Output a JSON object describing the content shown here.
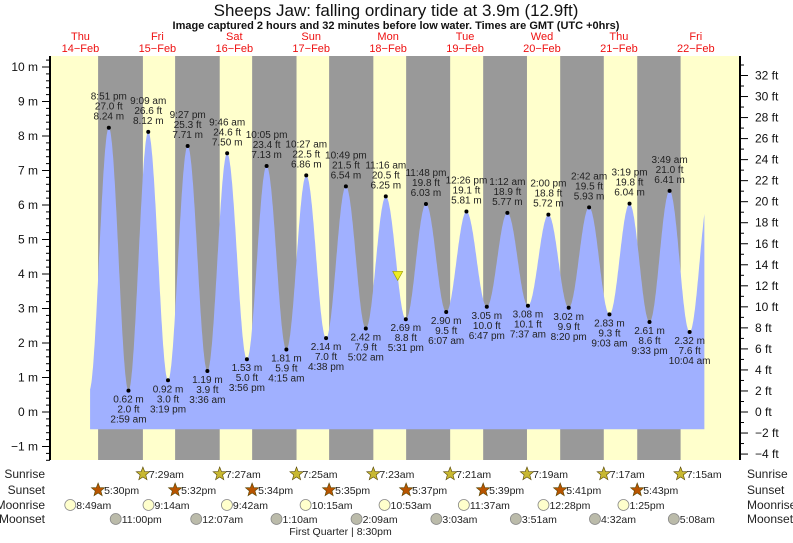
{
  "header": {
    "title": "Sheeps Jaw: falling  ordinary tide at 3.9m (12.9ft)",
    "subtitle": "Image captured 2 hours and 32 minutes before low water. Times are GMT (UTC +0hrs)"
  },
  "chart_data": {
    "type": "area",
    "title": "Sheeps Jaw: falling  ordinary tide at 3.9m (12.9ft)",
    "days": [
      {
        "dow": "Thu",
        "date": "14−Feb"
      },
      {
        "dow": "Fri",
        "date": "15−Feb"
      },
      {
        "dow": "Sat",
        "date": "16−Feb"
      },
      {
        "dow": "Sun",
        "date": "17−Feb"
      },
      {
        "dow": "Mon",
        "date": "18−Feb"
      },
      {
        "dow": "Tue",
        "date": "19−Feb"
      },
      {
        "dow": "Wed",
        "date": "20−Feb"
      },
      {
        "dow": "Thu",
        "date": "21−Feb"
      },
      {
        "dow": "Fri",
        "date": "22−Feb"
      }
    ],
    "y_left": {
      "unit": "m",
      "range": [
        -1.4,
        10.3
      ],
      "ticks": [
        -1,
        0,
        1,
        2,
        3,
        4,
        5,
        6,
        7,
        8,
        9,
        10
      ]
    },
    "y_right": {
      "unit": "ft",
      "ticks": [
        -4,
        -2,
        0,
        2,
        4,
        6,
        8,
        10,
        12,
        14,
        16,
        18,
        20,
        22,
        24,
        26,
        28,
        30,
        32
      ]
    },
    "x_range": [
      {
        "day": 0,
        "time": "3:00 pm"
      },
      {
        "day": 8,
        "time": "2:40 pm"
      }
    ],
    "fill_base_m": -0.5,
    "current": {
      "height_m": 3.9,
      "height_ft": 12.9,
      "state": "falling"
    },
    "extremes": [
      {
        "type": "high",
        "day": 0,
        "time": "8:51 pm",
        "ft": "27.0 ft",
        "m": 8.24
      },
      {
        "type": "low",
        "day": 1,
        "time": "2:59 am",
        "ft": "2.0 ft",
        "m": 0.62
      },
      {
        "type": "high",
        "day": 1,
        "time": "9:09 am",
        "ft": "26.6 ft",
        "m": 8.12
      },
      {
        "type": "low",
        "day": 1,
        "time": "3:19 pm",
        "ft": "3.0 ft",
        "m": 0.92
      },
      {
        "type": "high",
        "day": 1,
        "time": "9:27 pm",
        "ft": "25.3 ft",
        "m": 7.71
      },
      {
        "type": "low",
        "day": 2,
        "time": "3:36 am",
        "ft": "3.9 ft",
        "m": 1.19
      },
      {
        "type": "high",
        "day": 2,
        "time": "9:46 am",
        "ft": "24.6 ft",
        "m": 7.5
      },
      {
        "type": "low",
        "day": 2,
        "time": "3:56 pm",
        "ft": "5.0 ft",
        "m": 1.53
      },
      {
        "type": "high",
        "day": 2,
        "time": "10:05 pm",
        "ft": "23.4 ft",
        "m": 7.13
      },
      {
        "type": "low",
        "day": 3,
        "time": "4:15 am",
        "ft": "5.9 ft",
        "m": 1.81
      },
      {
        "type": "high",
        "day": 3,
        "time": "10:27 am",
        "ft": "22.5 ft",
        "m": 6.86
      },
      {
        "type": "low",
        "day": 3,
        "time": "4:38 pm",
        "ft": "7.0 ft",
        "m": 2.14
      },
      {
        "type": "high",
        "day": 3,
        "time": "10:49 pm",
        "ft": "21.5 ft",
        "m": 6.54
      },
      {
        "type": "low",
        "day": 4,
        "time": "5:02 am",
        "ft": "7.9 ft",
        "m": 2.42
      },
      {
        "type": "high",
        "day": 4,
        "time": "11:16 am",
        "ft": "20.5 ft",
        "m": 6.25
      },
      {
        "type": "low",
        "day": 4,
        "time": "5:31 pm",
        "ft": "8.8 ft",
        "m": 2.69
      },
      {
        "type": "high",
        "day": 4,
        "time": "11:48 pm",
        "ft": "19.8 ft",
        "m": 6.03
      },
      {
        "type": "low",
        "day": 5,
        "time": "6:07 am",
        "ft": "9.5 ft",
        "m": 2.9
      },
      {
        "type": "high",
        "day": 5,
        "time": "12:26 pm",
        "ft": "19.1 ft",
        "m": 5.81
      },
      {
        "type": "low",
        "day": 5,
        "time": "6:47 pm",
        "ft": "10.0 ft",
        "m": 3.05
      },
      {
        "type": "high",
        "day": 6,
        "time": "1:12 am",
        "ft": "18.9 ft",
        "m": 5.77
      },
      {
        "type": "low",
        "day": 6,
        "time": "7:37 am",
        "ft": "10.1 ft",
        "m": 3.08
      },
      {
        "type": "high",
        "day": 6,
        "time": "2:00 pm",
        "ft": "18.8 ft",
        "m": 5.72
      },
      {
        "type": "low",
        "day": 6,
        "time": "8:20 pm",
        "ft": "9.9 ft",
        "m": 3.02
      },
      {
        "type": "high",
        "day": 7,
        "time": "2:42 am",
        "ft": "19.5 ft",
        "m": 5.93
      },
      {
        "type": "low",
        "day": 7,
        "time": "9:03 am",
        "ft": "9.3 ft",
        "m": 2.83
      },
      {
        "type": "high",
        "day": 7,
        "time": "3:19 pm",
        "ft": "19.8 ft",
        "m": 6.04
      },
      {
        "type": "low",
        "day": 7,
        "time": "9:33 pm",
        "ft": "8.6 ft",
        "m": 2.61
      },
      {
        "type": "high",
        "day": 8,
        "time": "3:49 am",
        "ft": "21.0 ft",
        "m": 6.41
      },
      {
        "type": "low",
        "day": 8,
        "time": "10:04 am",
        "ft": "7.6 ft",
        "m": 2.32
      }
    ],
    "colors": {
      "day": "#ffffcc",
      "night": "#999999",
      "water": "#a0b0ff",
      "day_label": "#ee1111",
      "sunrise": "#c8b832",
      "sunset": "#b85400",
      "moonrise": "#ffffcc",
      "moonset": "#bbbbaa",
      "marker": "#eeee22"
    }
  },
  "almanac": {
    "labels": {
      "sunrise": "Sunrise",
      "sunset": "Sunset",
      "moonrise": "Moonrise",
      "moonset": "Moonset"
    },
    "sunrise": [
      {
        "day": 1,
        "time": "7:29am"
      },
      {
        "day": 2,
        "time": "7:27am"
      },
      {
        "day": 3,
        "time": "7:25am"
      },
      {
        "day": 4,
        "time": "7:23am"
      },
      {
        "day": 5,
        "time": "7:21am"
      },
      {
        "day": 6,
        "time": "7:19am"
      },
      {
        "day": 7,
        "time": "7:17am"
      },
      {
        "day": 8,
        "time": "7:15am"
      }
    ],
    "sunset": [
      {
        "day": 0,
        "time": "5:30pm"
      },
      {
        "day": 1,
        "time": "5:32pm"
      },
      {
        "day": 2,
        "time": "5:34pm"
      },
      {
        "day": 3,
        "time": "5:35pm"
      },
      {
        "day": 4,
        "time": "5:37pm"
      },
      {
        "day": 5,
        "time": "5:39pm"
      },
      {
        "day": 6,
        "time": "5:41pm"
      },
      {
        "day": 7,
        "time": "5:43pm"
      }
    ],
    "moonrise": [
      {
        "day": 0,
        "time": "8:49am"
      },
      {
        "day": 1,
        "time": "9:14am"
      },
      {
        "day": 2,
        "time": "9:42am"
      },
      {
        "day": 3,
        "time": "10:15am"
      },
      {
        "day": 4,
        "time": "10:53am"
      },
      {
        "day": 5,
        "time": "11:37am"
      },
      {
        "day": 6,
        "time": "12:28pm"
      },
      {
        "day": 7,
        "time": "1:25pm"
      }
    ],
    "moonset": [
      {
        "day": 0,
        "time": "11:00pm"
      },
      {
        "day": 2,
        "time": "12:07am"
      },
      {
        "day": 3,
        "time": "1:10am"
      },
      {
        "day": 4,
        "time": "2:09am"
      },
      {
        "day": 5,
        "time": "3:03am"
      },
      {
        "day": 6,
        "time": "3:51am"
      },
      {
        "day": 7,
        "time": "4:32am"
      },
      {
        "day": 8,
        "time": "5:08am"
      }
    ],
    "moon_phase": {
      "day": 3,
      "time": "8:30pm",
      "label": "First Quarter | 8:30pm"
    }
  }
}
